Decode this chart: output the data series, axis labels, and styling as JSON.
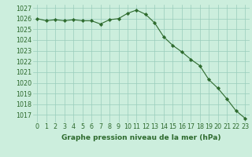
{
  "x": [
    0,
    1,
    2,
    3,
    4,
    5,
    6,
    7,
    8,
    9,
    10,
    11,
    12,
    13,
    14,
    15,
    16,
    17,
    18,
    19,
    20,
    21,
    22,
    23
  ],
  "y": [
    1026.0,
    1025.8,
    1025.9,
    1025.8,
    1025.9,
    1025.8,
    1025.8,
    1025.5,
    1025.9,
    1026.0,
    1026.5,
    1026.8,
    1026.4,
    1025.6,
    1024.3,
    1023.5,
    1022.9,
    1022.2,
    1021.6,
    1020.3,
    1019.5,
    1018.5,
    1017.4,
    1016.7
  ],
  "line_color": "#2d6a2d",
  "marker": "D",
  "marker_size": 2.2,
  "bg_color": "#cceedd",
  "grid_color": "#99ccbb",
  "xlabel": "Graphe pression niveau de la mer (hPa)",
  "ylabel": "",
  "ylim_min": 1016.3,
  "ylim_max": 1027.3,
  "xlim_min": -0.5,
  "xlim_max": 23.5,
  "yticks": [
    1017,
    1018,
    1019,
    1020,
    1021,
    1022,
    1023,
    1024,
    1025,
    1026,
    1027
  ],
  "xticks": [
    0,
    1,
    2,
    3,
    4,
    5,
    6,
    7,
    8,
    9,
    10,
    11,
    12,
    13,
    14,
    15,
    16,
    17,
    18,
    19,
    20,
    21,
    22,
    23
  ],
  "title_color": "#2d6a2d",
  "tick_color": "#2d6a2d",
  "xlabel_fontsize": 6.5,
  "tick_fontsize": 5.8
}
